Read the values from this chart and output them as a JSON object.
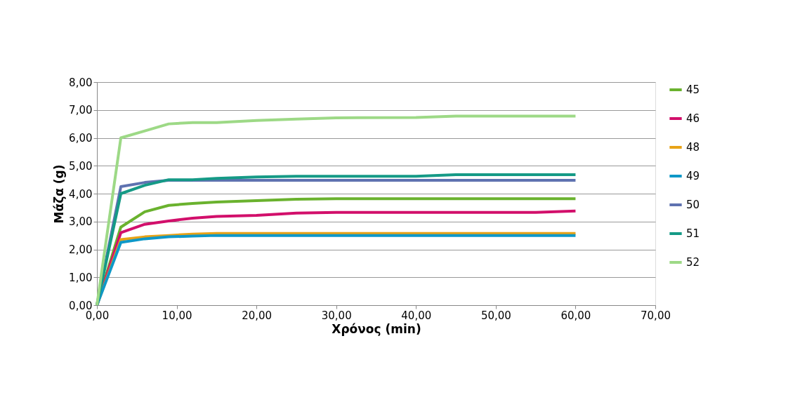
{
  "chart_data": {
    "type": "line",
    "xlabel": "Χρόνος (min)",
    "ylabel": "Μάζα (g)",
    "x": [
      0,
      3,
      6,
      9,
      12,
      15,
      20,
      25,
      30,
      40,
      45,
      50,
      55,
      60
    ],
    "xlim": [
      0,
      70
    ],
    "ylim": [
      0,
      8
    ],
    "xticks": [
      {
        "value": 0,
        "label": "0,00"
      },
      {
        "value": 10,
        "label": "10,00"
      },
      {
        "value": 20,
        "label": "20,00"
      },
      {
        "value": 30,
        "label": "30,00"
      },
      {
        "value": 40,
        "label": "40,00"
      },
      {
        "value": 50,
        "label": "50,00"
      },
      {
        "value": 60,
        "label": "60,00"
      },
      {
        "value": 70,
        "label": "70,00"
      }
    ],
    "yticks": [
      {
        "value": 0,
        "label": "0,00"
      },
      {
        "value": 1,
        "label": "1,00"
      },
      {
        "value": 2,
        "label": "2,00"
      },
      {
        "value": 3,
        "label": "3,00"
      },
      {
        "value": 4,
        "label": "4,00"
      },
      {
        "value": 5,
        "label": "5,00"
      },
      {
        "value": 6,
        "label": "6,00"
      },
      {
        "value": 7,
        "label": "7,00"
      },
      {
        "value": 8,
        "label": "8,00"
      }
    ],
    "grid": "y",
    "legend": "right",
    "marker": "none",
    "line_style": "solid",
    "series": [
      {
        "name": "45",
        "color": "#6ab22e",
        "values": [
          0,
          2.8,
          3.35,
          3.58,
          3.65,
          3.7,
          3.75,
          3.8,
          3.82,
          3.82,
          3.82,
          3.82,
          3.82,
          3.82
        ]
      },
      {
        "name": "46",
        "color": "#d20f6b",
        "values": [
          0,
          2.6,
          2.9,
          3.02,
          3.12,
          3.18,
          3.22,
          3.3,
          3.33,
          3.33,
          3.33,
          3.33,
          3.33,
          3.38
        ]
      },
      {
        "name": "48",
        "color": "#e8a317",
        "values": [
          0,
          2.35,
          2.45,
          2.5,
          2.55,
          2.57,
          2.57,
          2.57,
          2.57,
          2.57,
          2.57,
          2.57,
          2.57,
          2.57
        ]
      },
      {
        "name": "49",
        "color": "#0e98c8",
        "values": [
          0,
          2.25,
          2.38,
          2.45,
          2.48,
          2.5,
          2.5,
          2.5,
          2.5,
          2.5,
          2.5,
          2.5,
          2.5,
          2.5
        ]
      },
      {
        "name": "50",
        "color": "#5e72b0",
        "values": [
          0,
          4.25,
          4.4,
          4.48,
          4.48,
          4.48,
          4.48,
          4.48,
          4.48,
          4.48,
          4.48,
          4.48,
          4.48,
          4.48
        ]
      },
      {
        "name": "51",
        "color": "#159a86",
        "values": [
          0,
          4.0,
          4.3,
          4.5,
          4.5,
          4.55,
          4.6,
          4.62,
          4.62,
          4.62,
          4.68,
          4.68,
          4.68,
          4.68
        ]
      },
      {
        "name": "52",
        "color": "#9dd986",
        "values": [
          0,
          6.0,
          6.25,
          6.5,
          6.55,
          6.55,
          6.62,
          6.67,
          6.72,
          6.73,
          6.78,
          6.78,
          6.78,
          6.78
        ]
      }
    ]
  }
}
